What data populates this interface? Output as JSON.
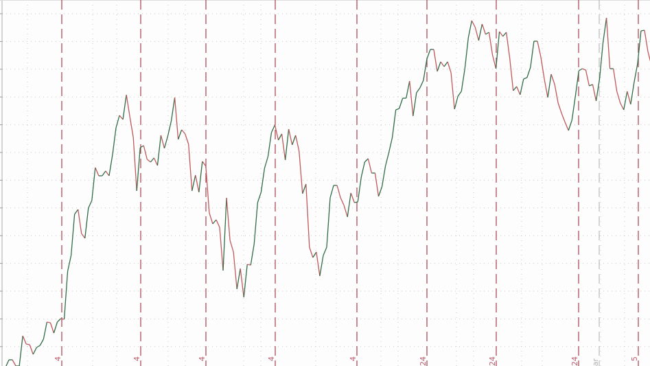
{
  "chart_data": {
    "type": "line",
    "title": "",
    "xlabel": "",
    "ylabel": "",
    "ylim": [
      0.7,
      54.0
    ],
    "grid": true,
    "line_colors": {
      "up": "#2f6b45",
      "down": "#c0575a"
    },
    "separator_color": "#a83a4a",
    "year_separator_color": "#b8b8b8",
    "values": [
      0.5,
      1.6,
      1.6,
      0.7,
      0.7,
      5.1,
      3.9,
      3.8,
      2.4,
      3.4,
      3.7,
      4.6,
      7.1,
      7.0,
      5.5,
      7.1,
      7.6,
      7.5,
      14.5,
      16.8,
      22.8,
      23.5,
      20.0,
      19.3,
      23.7,
      24.8,
      29.6,
      28.4,
      28.4,
      29.1,
      28.4,
      31.5,
      35.4,
      37.2,
      36.6,
      40.2,
      37.0,
      34.0,
      26.2,
      32.5,
      32.8,
      30.8,
      30.4,
      31.0,
      29.9,
      34.3,
      32.4,
      34.2,
      36.4,
      39.8,
      33.7,
      35.1,
      34.5,
      33.0,
      26.2,
      28.5,
      26.0,
      30.5,
      29.8,
      23.0,
      21.4,
      22.0,
      20.9,
      14.6,
      25.2,
      19.0,
      17.3,
      11.9,
      14.9,
      10.7,
      15.5,
      15.4,
      18.5,
      24.5,
      26.0,
      29.5,
      31.2,
      34.7,
      35.8,
      33.6,
      34.5,
      30.7,
      35.2,
      32.9,
      34.3,
      32.0,
      25.8,
      27.2,
      18.0,
      16.5,
      17.3,
      13.8,
      16.8,
      18.0,
      25.2,
      27.0,
      27.0,
      25.2,
      24.1,
      22.4,
      25.9,
      24.5,
      24.6,
      28.2,
      30.4,
      30.9,
      28.8,
      28.8,
      25.4,
      26.8,
      29.8,
      31.8,
      34.0,
      38.0,
      38.2,
      39.7,
      39.7,
      42.2,
      37.1,
      40.5,
      41.2,
      42.3,
      45.4,
      46.8,
      46.8,
      43.6,
      45.0,
      44.3,
      45.0,
      43.4,
      38.1,
      40.0,
      40.7,
      44.0,
      48.5,
      51.0,
      50.0,
      48.1,
      50.5,
      49.0,
      49.3,
      46.0,
      44.0,
      49.4,
      48.7,
      49.3,
      45.5,
      40.8,
      41.4,
      40.2,
      42.5,
      42.7,
      44.2,
      48.0,
      48.0,
      45.7,
      42.5,
      39.8,
      43.2,
      41.7,
      39.0,
      37.5,
      36.2,
      35.0,
      36.5,
      40.0,
      43.7,
      44.0,
      43.8,
      41.5,
      41.7,
      39.3,
      42.5,
      47.8,
      51.4,
      44.0,
      44.0,
      40.7,
      39.0,
      38.0,
      40.7,
      38.8,
      42.0,
      44.7,
      49.5,
      49.6,
      46.5,
      44.5
    ],
    "tick_labels": [
      "4",
      "4",
      "4",
      "4",
      "4",
      "24",
      "24",
      "24",
      "ear",
      "5"
    ]
  }
}
